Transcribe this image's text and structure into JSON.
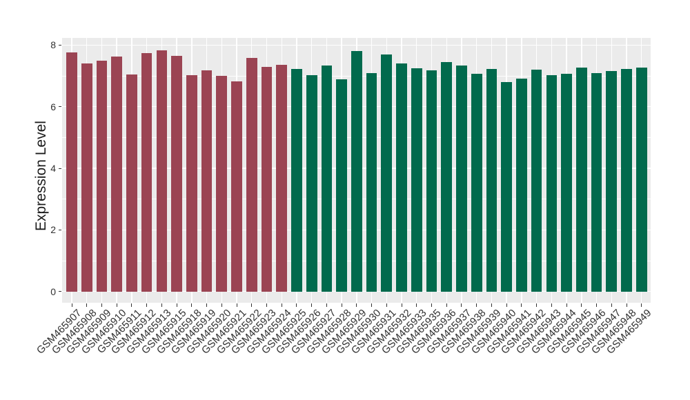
{
  "chart_data": {
    "type": "bar",
    "title": "",
    "xlabel": "",
    "ylabel": "Expression Level",
    "ylim": [
      0,
      8
    ],
    "yticks": [
      0,
      2,
      4,
      6,
      8
    ],
    "yticks_minor": [
      1,
      3,
      5,
      7
    ],
    "grid": "on",
    "legend_position": "none",
    "categories": [
      "GSM465907",
      "GSM465908",
      "GSM465909",
      "GSM465910",
      "GSM465911",
      "GSM465912",
      "GSM465913",
      "GSM465915",
      "GSM465918",
      "GSM465919",
      "GSM465920",
      "GSM465921",
      "GSM465922",
      "GSM465923",
      "GSM465924",
      "GSM465925",
      "GSM465926",
      "GSM465927",
      "GSM465928",
      "GSM465929",
      "GSM465930",
      "GSM465931",
      "GSM465932",
      "GSM465933",
      "GSM465935",
      "GSM465936",
      "GSM465937",
      "GSM465938",
      "GSM465939",
      "GSM465940",
      "GSM465941",
      "GSM465942",
      "GSM465943",
      "GSM465944",
      "GSM465945",
      "GSM465946",
      "GSM465947",
      "GSM465948",
      "GSM465949"
    ],
    "values": [
      7.77,
      7.41,
      7.5,
      7.62,
      7.04,
      7.73,
      7.82,
      7.64,
      7.03,
      7.19,
      7.01,
      6.83,
      7.59,
      7.3,
      7.35,
      7.22,
      7.02,
      7.33,
      6.88,
      7.8,
      7.1,
      7.7,
      7.41,
      7.24,
      7.17,
      7.44,
      7.33,
      7.06,
      7.23,
      6.79,
      6.91,
      7.21,
      7.03,
      7.06,
      7.28,
      7.08,
      7.16,
      7.22,
      7.27
    ],
    "group_split_index": 15,
    "group_colors": {
      "first_group": "#9B4453",
      "second_group": "#016A4D"
    },
    "group_ranges": [
      {
        "from": "GSM465907",
        "to": "GSM465924",
        "color": "#9B4453"
      },
      {
        "from": "GSM465925",
        "to": "GSM465949",
        "color": "#016A4D"
      }
    ]
  },
  "style": {
    "figure_bg": "#FFFFFF",
    "panel_bg": "#EBEBEB",
    "grid_color": "#FFFFFF",
    "tick_color": "#333333",
    "axis_text_color": "#303030",
    "axis_title_color": "#1A1A1A"
  }
}
